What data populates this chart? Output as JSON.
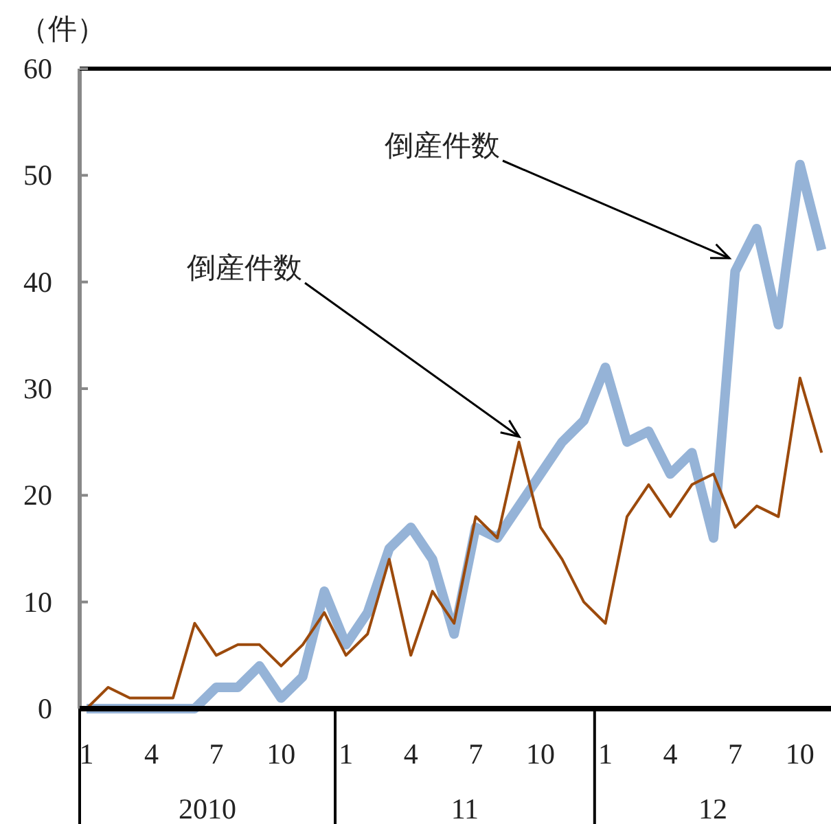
{
  "chart_data": {
    "type": "line",
    "ylabel": "（件）",
    "categories": [
      "1",
      null,
      null,
      "4",
      null,
      null,
      "7",
      null,
      null,
      "10",
      null,
      null,
      "1",
      null,
      null,
      "4",
      null,
      null,
      "7",
      null,
      null,
      "10",
      null,
      null,
      "1",
      null,
      null,
      "4",
      null,
      null,
      "7",
      null,
      null,
      "10",
      null
    ],
    "series": [
      {
        "name": "倒産件数",
        "color": "#95b3d7",
        "values": [
          0,
          0,
          0,
          0,
          0,
          0,
          2,
          2,
          4,
          1,
          3,
          11,
          6,
          9,
          15,
          17,
          14,
          7,
          17,
          16,
          19,
          22,
          25,
          27,
          32,
          25,
          26,
          22,
          24,
          16,
          41,
          45,
          36,
          51,
          43
        ]
      },
      {
        "name": "倒産件数",
        "color": "#9c4a0c",
        "values": [
          0,
          2,
          1,
          1,
          1,
          8,
          5,
          6,
          6,
          4,
          6,
          9,
          5,
          7,
          14,
          5,
          11,
          8,
          18,
          16,
          25,
          17,
          14,
          10,
          8,
          18,
          21,
          18,
          21,
          22,
          17,
          19,
          18,
          31,
          24
        ]
      }
    ],
    "annotations": [
      "2010",
      "11",
      "12"
    ],
    "ylim": [
      0,
      60
    ],
    "yticks": [
      0,
      10,
      20,
      30,
      40,
      50,
      60
    ],
    "grid": false,
    "marker": "none",
    "line_style": "solid"
  }
}
